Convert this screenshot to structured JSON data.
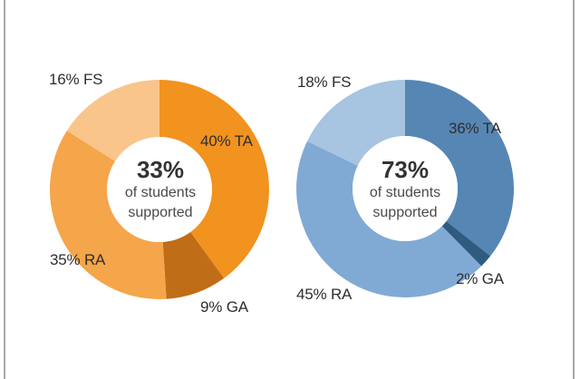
{
  "chart_data": [
    {
      "type": "pie",
      "variant": "donut",
      "title": "",
      "center_value": "33%",
      "center_text": [
        "of students",
        "supported"
      ],
      "categories": [
        "TA",
        "GA",
        "RA",
        "FS"
      ],
      "values": [
        40,
        9,
        35,
        16
      ],
      "labels": [
        "40% TA",
        "9% GA",
        "35% RA",
        "16% FS"
      ],
      "colors": [
        "#F2921F",
        "#C06D17",
        "#F5A54A",
        "#F9C58A"
      ],
      "start_angle": "12 o'clock",
      "direction": "clockwise",
      "legend": "none (inline labels)"
    },
    {
      "type": "pie",
      "variant": "donut",
      "title": "",
      "center_value": "73%",
      "center_text": [
        "of students",
        "supported"
      ],
      "categories": [
        "TA",
        "GA",
        "RA",
        "FS"
      ],
      "values": [
        36,
        2,
        45,
        18
      ],
      "labels": [
        "36% TA",
        "2% GA",
        "45% RA",
        "18% FS"
      ],
      "colors": [
        "#5686B4",
        "#2F5B80",
        "#80AAD4",
        "#A7C4E0"
      ],
      "start_angle": "12 o'clock",
      "direction": "clockwise",
      "legend": "none (inline labels)"
    }
  ],
  "donuts": [
    {
      "center": {
        "pct": "33%",
        "line1": "of students",
        "line2": "supported"
      },
      "labels": {
        "ta": "40% TA",
        "ga": "9% GA",
        "ra": "35% RA",
        "fs": "16% FS"
      }
    },
    {
      "center": {
        "pct": "73%",
        "line1": "of students",
        "line2": "supported"
      },
      "labels": {
        "ta": "36% TA",
        "ga": "2% GA",
        "ra": "45% RA",
        "fs": "18% FS"
      }
    }
  ]
}
